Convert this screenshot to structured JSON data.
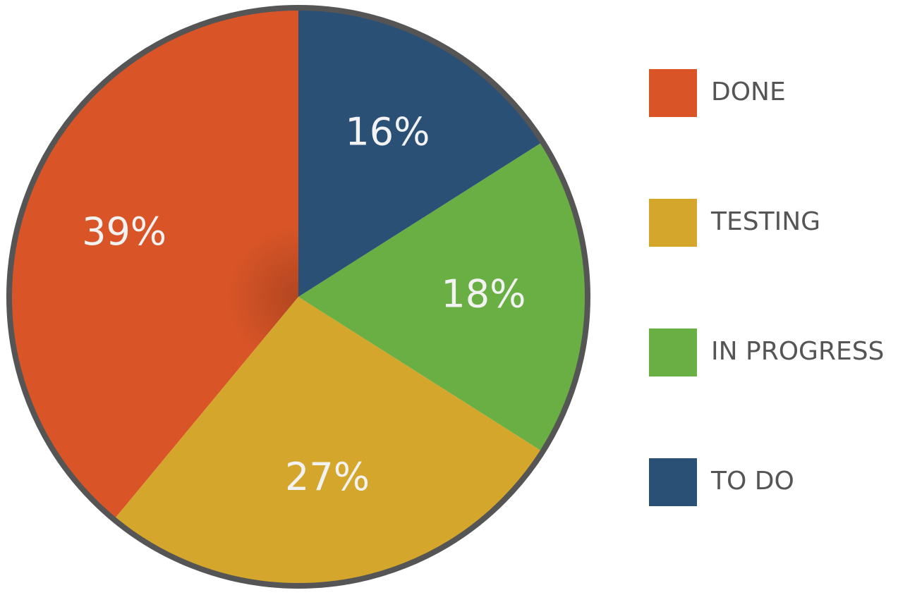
{
  "chart_data": {
    "type": "pie",
    "categories": [
      "DONE",
      "TESTING",
      "IN PROGRESS",
      "TO DO"
    ],
    "values": [
      39,
      27,
      18,
      16
    ],
    "value_labels": [
      "39%",
      "27%",
      "18%",
      "16%"
    ],
    "colors": [
      "#d95527",
      "#d4a72c",
      "#6aaf44",
      "#2b5075"
    ],
    "direction": "counterclockwise",
    "legend": "right"
  }
}
